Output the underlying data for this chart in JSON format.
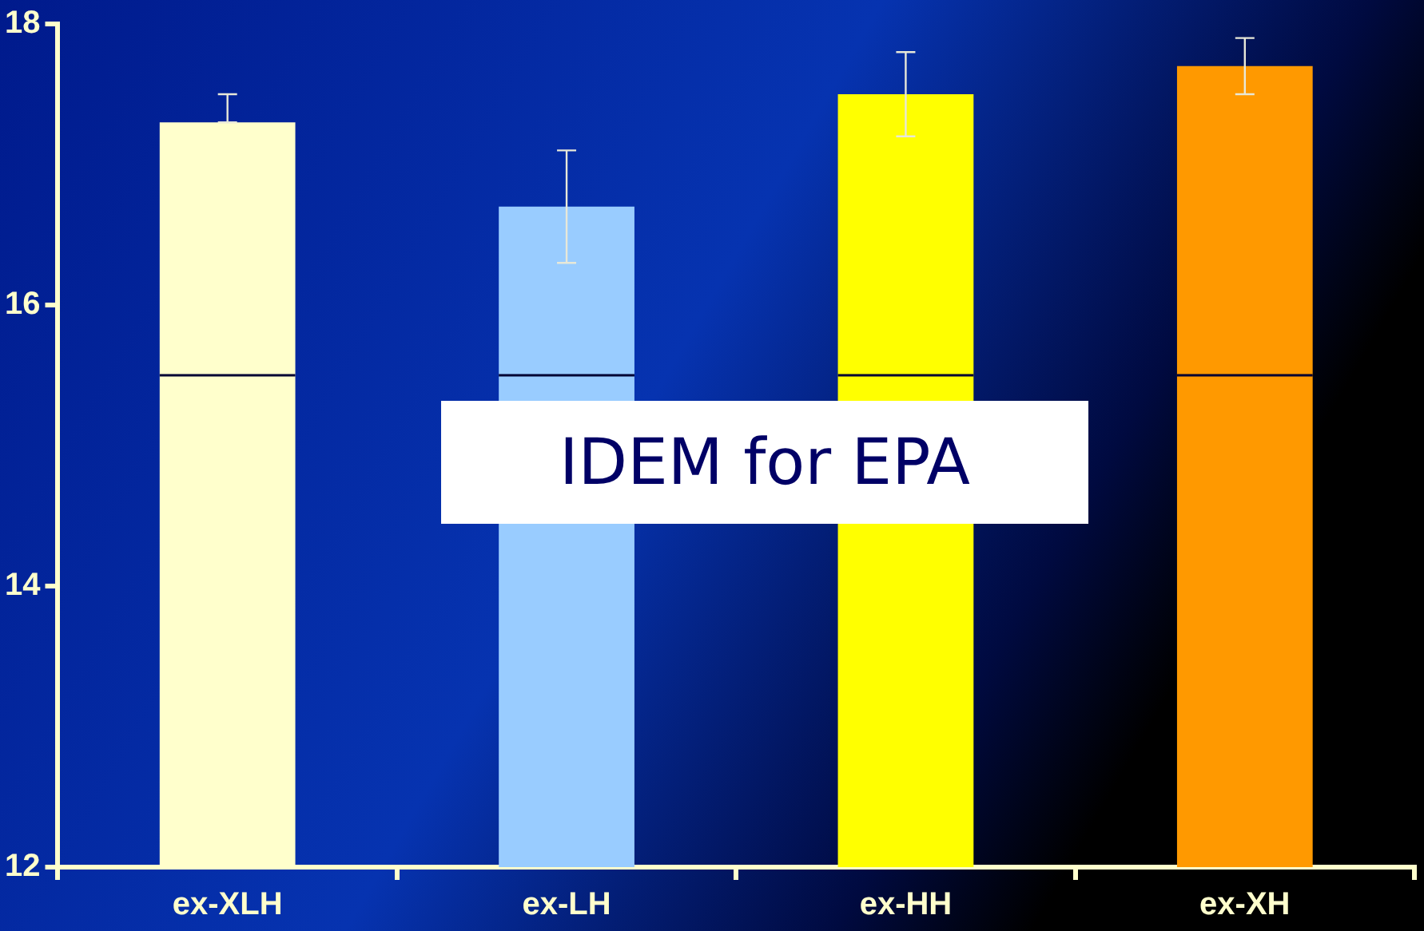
{
  "chart_data": {
    "type": "bar",
    "categories": [
      "ex-XLH",
      "ex-LH",
      "ex-HH",
      "ex-XH"
    ],
    "values": [
      17.3,
      16.7,
      17.5,
      17.7
    ],
    "colors": [
      "#ffffcc",
      "#99ccff",
      "#ffff00",
      "#ff9900"
    ],
    "errors": [
      [
        17.3,
        17.5
      ],
      [
        16.3,
        17.1
      ],
      [
        17.2,
        17.8
      ],
      [
        17.5,
        17.9
      ]
    ],
    "ylim": [
      12,
      18
    ],
    "yticks": [
      12,
      14,
      16,
      18
    ],
    "grid": false,
    "legend": false,
    "ref_lines": [
      {
        "axis": "y",
        "value": 15.5,
        "color": "#000033"
      }
    ],
    "annotations": [
      "IDEM for EPA"
    ]
  }
}
